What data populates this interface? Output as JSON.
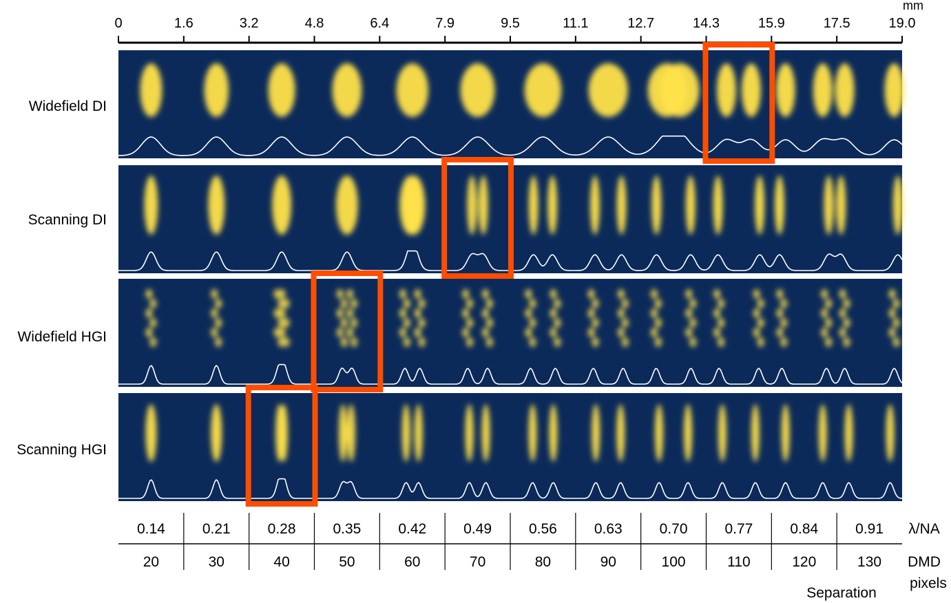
{
  "scale": {
    "unit": "mm",
    "ticks": [
      "0",
      "1.6",
      "3.2",
      "4.8",
      "6.4",
      "7.9",
      "9.5",
      "11.1",
      "12.7",
      "14.3",
      "15.9",
      "17.5",
      "19.0"
    ]
  },
  "rows": [
    {
      "label": "Widefield DI",
      "mode": "widefield",
      "resolved_index": 9
    },
    {
      "label": "Scanning DI",
      "mode": "scanning",
      "resolved_index": 5
    },
    {
      "label": "Widefield HGI",
      "mode": "hgi-wide",
      "resolved_index": 3
    },
    {
      "label": "Scanning HGI",
      "mode": "hgi-scan",
      "resolved_index": 2
    }
  ],
  "table": {
    "lambda_na": [
      "0.14",
      "0.21",
      "0.28",
      "0.35",
      "0.42",
      "0.49",
      "0.56",
      "0.63",
      "0.70",
      "0.77",
      "0.84",
      "0.91"
    ],
    "dmd_pixels": [
      "20",
      "30",
      "40",
      "50",
      "60",
      "70",
      "80",
      "90",
      "100",
      "110",
      "120",
      "130"
    ],
    "row_label_lambda": "λ/NA",
    "row_label_dmd_1": "DMD",
    "row_label_dmd_2": "pixels",
    "caption": "Separation"
  },
  "colors": {
    "panel": "#0b2a5a",
    "spot": "#ffe14a",
    "highlight": "#ff4d00",
    "profile": "#ffffff"
  }
}
